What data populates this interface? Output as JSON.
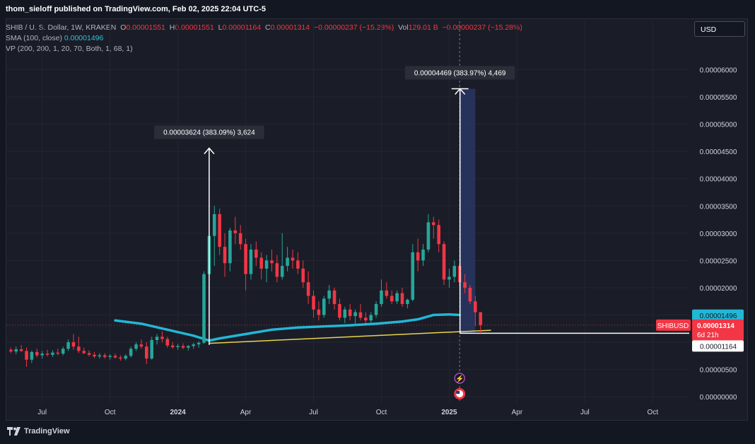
{
  "header": {
    "published": "thom_sieloff published on TradingView.com, Feb 02, 2025 22:04 UTC-5"
  },
  "legend": {
    "symbol": "SHIB / U. S. Dollar, 1W, KRAKEN",
    "o_label": "O",
    "o_value": "0.00001551",
    "h_label": "H",
    "h_value": "0.00001551",
    "l_label": "L",
    "l_value": "0.00001164",
    "c_label": "C",
    "c_value": "0.00001314",
    "change": "−0.00000237 (−15.28%)",
    "vol_label": "Vol",
    "vol_value": "129.01 B",
    "vol_change": "−0.00000237 (−15.28%)",
    "sma_label": "SMA (100, close)",
    "sma_value": "0.00001496",
    "vp_label": "VP (200, 200, 1, 20, 70, Both, 1, 68, 1)"
  },
  "currency_button": "USD",
  "footer": {
    "brand": "TradingView"
  },
  "chart_data": {
    "type": "candlestick",
    "y_ticks": [
      "0.00006000",
      "0.00005500",
      "0.00005000",
      "0.00004500",
      "0.00004000",
      "0.00003500",
      "0.00003000",
      "0.00002500",
      "0.00002000",
      "0.00001500",
      "0.00001000",
      "0.00000500",
      "0.00000000"
    ],
    "y_tick_values": [
      6.0,
      5.5,
      5.0,
      4.5,
      4.0,
      3.5,
      3.0,
      2.5,
      2.0,
      1.5,
      1.0,
      0.5,
      0.0
    ],
    "ylim": [
      -0.05,
      6.5
    ],
    "y_unit_note": "1e-5 USD",
    "x_ticks": [
      {
        "label": "Jul",
        "week": 6,
        "bold": false
      },
      {
        "label": "Oct",
        "week": 19,
        "bold": false
      },
      {
        "label": "2024",
        "week": 32,
        "bold": true
      },
      {
        "label": "Apr",
        "week": 45,
        "bold": false
      },
      {
        "label": "Jul",
        "week": 58,
        "bold": false
      },
      {
        "label": "Oct",
        "week": 71,
        "bold": false
      },
      {
        "label": "2025",
        "week": 84,
        "bold": true
      },
      {
        "label": "Apr",
        "week": 97,
        "bold": false
      },
      {
        "label": "Jul",
        "week": 110,
        "bold": false
      },
      {
        "label": "Oct",
        "week": 123,
        "bold": false
      }
    ],
    "xlim": [
      -1,
      130
    ],
    "candles": [
      {
        "o": 0.86,
        "h": 0.9,
        "l": 0.8,
        "c": 0.83
      },
      {
        "o": 0.83,
        "h": 0.92,
        "l": 0.78,
        "c": 0.87
      },
      {
        "o": 0.87,
        "h": 0.95,
        "l": 0.82,
        "c": 0.84
      },
      {
        "o": 0.84,
        "h": 0.9,
        "l": 0.55,
        "c": 0.68
      },
      {
        "o": 0.68,
        "h": 0.85,
        "l": 0.62,
        "c": 0.82
      },
      {
        "o": 0.82,
        "h": 0.88,
        "l": 0.72,
        "c": 0.76
      },
      {
        "o": 0.76,
        "h": 0.84,
        "l": 0.7,
        "c": 0.79
      },
      {
        "o": 0.79,
        "h": 0.86,
        "l": 0.74,
        "c": 0.77
      },
      {
        "o": 0.77,
        "h": 0.85,
        "l": 0.73,
        "c": 0.81
      },
      {
        "o": 0.81,
        "h": 0.88,
        "l": 0.76,
        "c": 0.79
      },
      {
        "o": 0.79,
        "h": 0.92,
        "l": 0.76,
        "c": 0.88
      },
      {
        "o": 0.88,
        "h": 1.05,
        "l": 0.84,
        "c": 1.0
      },
      {
        "o": 1.0,
        "h": 1.15,
        "l": 0.86,
        "c": 0.92
      },
      {
        "o": 0.92,
        "h": 1.1,
        "l": 0.8,
        "c": 0.84
      },
      {
        "o": 0.84,
        "h": 0.9,
        "l": 0.78,
        "c": 0.8
      },
      {
        "o": 0.8,
        "h": 0.85,
        "l": 0.74,
        "c": 0.77
      },
      {
        "o": 0.77,
        "h": 0.82,
        "l": 0.71,
        "c": 0.74
      },
      {
        "o": 0.74,
        "h": 0.8,
        "l": 0.7,
        "c": 0.76
      },
      {
        "o": 0.76,
        "h": 0.8,
        "l": 0.7,
        "c": 0.73
      },
      {
        "o": 0.73,
        "h": 0.78,
        "l": 0.68,
        "c": 0.75
      },
      {
        "o": 0.75,
        "h": 0.79,
        "l": 0.7,
        "c": 0.72
      },
      {
        "o": 0.72,
        "h": 0.76,
        "l": 0.66,
        "c": 0.7
      },
      {
        "o": 0.7,
        "h": 0.78,
        "l": 0.67,
        "c": 0.75
      },
      {
        "o": 0.75,
        "h": 0.92,
        "l": 0.72,
        "c": 0.88
      },
      {
        "o": 0.88,
        "h": 1.0,
        "l": 0.84,
        "c": 0.96
      },
      {
        "o": 0.96,
        "h": 1.05,
        "l": 0.88,
        "c": 0.92
      },
      {
        "o": 0.92,
        "h": 1.0,
        "l": 0.6,
        "c": 0.7
      },
      {
        "o": 0.7,
        "h": 1.1,
        "l": 0.68,
        "c": 1.04
      },
      {
        "o": 1.04,
        "h": 1.15,
        "l": 0.96,
        "c": 1.1
      },
      {
        "o": 1.1,
        "h": 1.2,
        "l": 1.0,
        "c": 1.06
      },
      {
        "o": 1.06,
        "h": 1.1,
        "l": 0.9,
        "c": 0.94
      },
      {
        "o": 0.94,
        "h": 1.0,
        "l": 0.88,
        "c": 0.91
      },
      {
        "o": 0.91,
        "h": 0.97,
        "l": 0.86,
        "c": 0.93
      },
      {
        "o": 0.93,
        "h": 0.98,
        "l": 0.87,
        "c": 0.9
      },
      {
        "o": 0.9,
        "h": 0.95,
        "l": 0.85,
        "c": 0.93
      },
      {
        "o": 0.93,
        "h": 0.99,
        "l": 0.88,
        "c": 0.96
      },
      {
        "o": 0.96,
        "h": 1.02,
        "l": 0.9,
        "c": 0.99
      },
      {
        "o": 0.99,
        "h": 2.3,
        "l": 0.97,
        "c": 2.25
      },
      {
        "o": 2.25,
        "h": 4.56,
        "l": 2.2,
        "c": 2.95
      },
      {
        "o": 2.95,
        "h": 3.5,
        "l": 2.4,
        "c": 3.35
      },
      {
        "o": 3.35,
        "h": 3.45,
        "l": 2.6,
        "c": 2.75
      },
      {
        "o": 2.75,
        "h": 3.0,
        "l": 2.2,
        "c": 2.45
      },
      {
        "o": 2.45,
        "h": 3.1,
        "l": 2.3,
        "c": 3.05
      },
      {
        "o": 3.05,
        "h": 3.3,
        "l": 2.8,
        "c": 3.0
      },
      {
        "o": 3.0,
        "h": 3.15,
        "l": 2.7,
        "c": 2.8
      },
      {
        "o": 2.8,
        "h": 2.9,
        "l": 1.95,
        "c": 2.25
      },
      {
        "o": 2.25,
        "h": 2.8,
        "l": 2.15,
        "c": 2.7
      },
      {
        "o": 2.7,
        "h": 2.85,
        "l": 2.4,
        "c": 2.55
      },
      {
        "o": 2.55,
        "h": 2.65,
        "l": 2.15,
        "c": 2.35
      },
      {
        "o": 2.35,
        "h": 2.6,
        "l": 2.1,
        "c": 2.5
      },
      {
        "o": 2.5,
        "h": 2.7,
        "l": 2.3,
        "c": 2.45
      },
      {
        "o": 2.45,
        "h": 2.6,
        "l": 2.1,
        "c": 2.2
      },
      {
        "o": 2.2,
        "h": 3.0,
        "l": 2.15,
        "c": 2.4
      },
      {
        "o": 2.4,
        "h": 2.75,
        "l": 2.3,
        "c": 2.55
      },
      {
        "o": 2.55,
        "h": 2.7,
        "l": 2.35,
        "c": 2.5
      },
      {
        "o": 2.5,
        "h": 2.65,
        "l": 2.25,
        "c": 2.35
      },
      {
        "o": 2.35,
        "h": 2.5,
        "l": 2.0,
        "c": 2.1
      },
      {
        "o": 2.1,
        "h": 2.3,
        "l": 1.7,
        "c": 1.85
      },
      {
        "o": 1.85,
        "h": 1.95,
        "l": 1.45,
        "c": 1.6
      },
      {
        "o": 1.6,
        "h": 1.75,
        "l": 1.4,
        "c": 1.5
      },
      {
        "o": 1.5,
        "h": 1.85,
        "l": 1.45,
        "c": 1.8
      },
      {
        "o": 1.8,
        "h": 2.05,
        "l": 1.7,
        "c": 1.95
      },
      {
        "o": 1.95,
        "h": 2.0,
        "l": 1.6,
        "c": 1.7
      },
      {
        "o": 1.7,
        "h": 1.8,
        "l": 1.4,
        "c": 1.45
      },
      {
        "o": 1.45,
        "h": 1.65,
        "l": 1.35,
        "c": 1.6
      },
      {
        "o": 1.6,
        "h": 1.7,
        "l": 1.4,
        "c": 1.48
      },
      {
        "o": 1.48,
        "h": 1.6,
        "l": 1.3,
        "c": 1.55
      },
      {
        "o": 1.55,
        "h": 1.7,
        "l": 1.4,
        "c": 1.45
      },
      {
        "o": 1.45,
        "h": 1.55,
        "l": 1.35,
        "c": 1.4
      },
      {
        "o": 1.4,
        "h": 1.55,
        "l": 1.36,
        "c": 1.5
      },
      {
        "o": 1.5,
        "h": 1.75,
        "l": 1.45,
        "c": 1.7
      },
      {
        "o": 1.7,
        "h": 2.15,
        "l": 1.65,
        "c": 1.95
      },
      {
        "o": 1.95,
        "h": 2.1,
        "l": 1.8,
        "c": 1.85
      },
      {
        "o": 1.85,
        "h": 1.95,
        "l": 1.7,
        "c": 1.75
      },
      {
        "o": 1.75,
        "h": 1.95,
        "l": 1.7,
        "c": 1.9
      },
      {
        "o": 1.9,
        "h": 2.0,
        "l": 1.65,
        "c": 1.7
      },
      {
        "o": 1.7,
        "h": 1.8,
        "l": 1.62,
        "c": 1.78
      },
      {
        "o": 1.78,
        "h": 2.8,
        "l": 1.75,
        "c": 2.65
      },
      {
        "o": 2.65,
        "h": 2.9,
        "l": 2.3,
        "c": 2.5
      },
      {
        "o": 2.5,
        "h": 2.8,
        "l": 2.4,
        "c": 2.7
      },
      {
        "o": 2.7,
        "h": 3.35,
        "l": 2.65,
        "c": 3.2
      },
      {
        "o": 3.2,
        "h": 3.3,
        "l": 2.9,
        "c": 3.15
      },
      {
        "o": 3.15,
        "h": 3.25,
        "l": 2.65,
        "c": 2.8
      },
      {
        "o": 2.8,
        "h": 2.85,
        "l": 2.05,
        "c": 2.15
      },
      {
        "o": 2.15,
        "h": 2.35,
        "l": 2.0,
        "c": 2.2
      },
      {
        "o": 2.2,
        "h": 2.5,
        "l": 2.1,
        "c": 2.4
      },
      {
        "o": 2.4,
        "h": 2.45,
        "l": 2.0,
        "c": 2.1
      },
      {
        "o": 2.1,
        "h": 2.25,
        "l": 1.9,
        "c": 2.0
      },
      {
        "o": 2.0,
        "h": 2.05,
        "l": 1.7,
        "c": 1.75
      },
      {
        "o": 1.75,
        "h": 1.85,
        "l": 1.3,
        "c": 1.55
      },
      {
        "o": 1.551,
        "h": 1.551,
        "l": 1.164,
        "c": 1.314
      }
    ],
    "sma": [
      [
        20,
        1.4
      ],
      [
        25,
        1.34
      ],
      [
        30,
        1.23
      ],
      [
        35,
        1.12
      ],
      [
        38,
        1.03
      ],
      [
        40,
        1.07
      ],
      [
        45,
        1.15
      ],
      [
        50,
        1.23
      ],
      [
        55,
        1.27
      ],
      [
        60,
        1.29
      ],
      [
        65,
        1.31
      ],
      [
        70,
        1.34
      ],
      [
        75,
        1.38
      ],
      [
        78,
        1.42
      ],
      [
        81,
        1.5
      ],
      [
        84,
        1.51
      ],
      [
        86,
        1.5
      ]
    ],
    "support_line": [
      [
        38,
        0.98
      ],
      [
        92,
        1.22
      ]
    ],
    "measure_1": {
      "label": "0.00003624 (383.09%) 3,624",
      "week": 38,
      "from": 0.95,
      "to": 4.56
    },
    "measure_2": {
      "label": "0.00004469 (383.97%) 4,469",
      "week": 86,
      "from": 1.164,
      "to": 5.65
    },
    "projection_zone": {
      "from_week": 86,
      "to_week": 89,
      "low": 1.164,
      "high": 5.65
    },
    "low_level": 1.164,
    "price_labels": {
      "sma": "0.00001496",
      "symbol": "SHIBUSD",
      "last": "0.00001314",
      "countdown": "6d 21h",
      "low": "0.00001164"
    },
    "colors": {
      "up": "#26a69a",
      "down": "#f23645",
      "sma": "#22b7d6",
      "support": "#e8d44d",
      "zone": "#2b3a6b"
    }
  }
}
